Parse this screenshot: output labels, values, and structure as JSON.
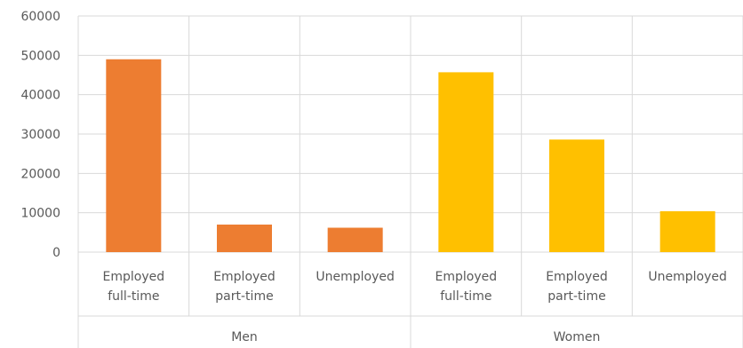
{
  "chart_data": {
    "type": "bar",
    "title": "",
    "xlabel": "",
    "ylabel": "",
    "ylim": [
      0,
      60000
    ],
    "yticks": [
      0,
      10000,
      20000,
      30000,
      40000,
      50000,
      60000
    ],
    "grid": true,
    "legend": "none",
    "groups": [
      {
        "name": "Men",
        "color": "#ED7D31",
        "categories": [
          [
            "Employed",
            "full-time"
          ],
          [
            "Employed",
            "part-time"
          ],
          [
            "Unemployed"
          ]
        ],
        "values": [
          49000,
          7000,
          6200
        ]
      },
      {
        "name": "Women",
        "color": "#FFC000",
        "categories": [
          [
            "Employed",
            "full-time"
          ],
          [
            "Employed",
            "part-time"
          ],
          [
            "Unemployed"
          ]
        ],
        "values": [
          45700,
          28600,
          10400
        ]
      }
    ]
  },
  "colors": {
    "grid": "#D9D9D9",
    "text": "#595959"
  }
}
